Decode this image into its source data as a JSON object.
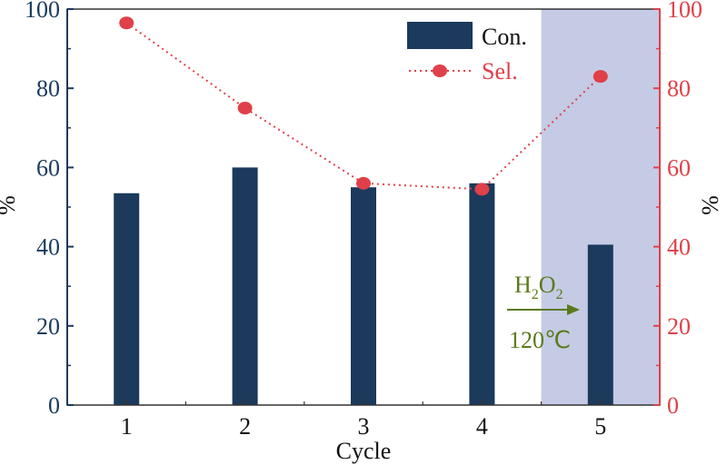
{
  "chart_data": {
    "type": "bar",
    "categories": [
      "1",
      "2",
      "3",
      "4",
      "5"
    ],
    "series": [
      {
        "name": "Con.",
        "kind": "bar",
        "axis": "left",
        "values": [
          53.5,
          60,
          55,
          56,
          40.5
        ]
      },
      {
        "name": "Sel.",
        "kind": "line-dotted-markers",
        "axis": "right",
        "values": [
          96.5,
          75,
          56,
          54.5,
          83
        ]
      }
    ],
    "xlabel": "Cycle",
    "ylabel_left": "%",
    "ylabel_right": "%",
    "ylim_left": [
      0,
      100
    ],
    "ylim_right": [
      0,
      100
    ],
    "yticks": [
      "0",
      "20",
      "40",
      "60",
      "80",
      "100"
    ],
    "grid": false,
    "legend_position": "top-right",
    "highlighted_category": "5",
    "annotation": {
      "h": "H",
      "sub1": "2",
      "o": "O",
      "sub2": "2",
      "temperature": "120℃"
    },
    "colors": {
      "bar": "#1b3a5c",
      "line": "#e0404a",
      "left_axis": "#1b3a5c",
      "right_axis": "#e0404a",
      "highlight": "#c5cbe5",
      "annotation": "#5a7a1a"
    }
  }
}
